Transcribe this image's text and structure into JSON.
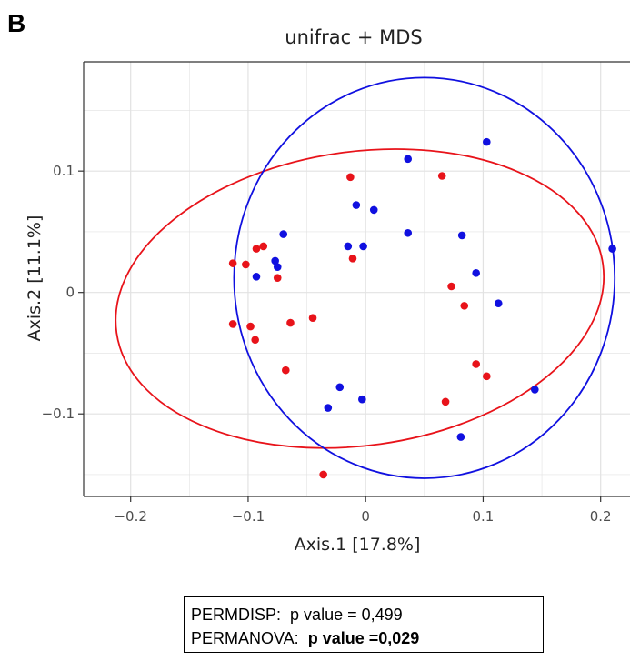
{
  "panel_label": "B",
  "stats": {
    "permdisp_label": "PERMDISP:",
    "permdisp_value": "p value = 0,499",
    "permanova_label": "PERMANOVA:",
    "permanova_value": "p value =0,029"
  },
  "chart_data": {
    "type": "scatter",
    "title": "unifrac + MDS",
    "xlabel": "Axis.1 [17.8%]",
    "ylabel": "Axis.2 [11.1%]",
    "xlim": [
      -0.24,
      0.225
    ],
    "ylim": [
      -0.168,
      0.19
    ],
    "x_ticks": [
      -0.2,
      -0.1,
      0,
      0.1,
      0.2
    ],
    "x_tick_labels": [
      "−0.2",
      "−0.1",
      "0",
      "0.1",
      "0.2"
    ],
    "y_ticks": [
      -0.1,
      0,
      0.1
    ],
    "y_tick_labels": [
      "−0.1",
      "0",
      "0.1"
    ],
    "grid": true,
    "colors": {
      "series_red": "#e8131a",
      "series_blue": "#1010e0",
      "panel_bg": "#ffffff",
      "grid": "#e2e2e2"
    },
    "series": [
      {
        "color": "#e8131a",
        "points": [
          [
            -0.113,
            0.024
          ],
          [
            -0.102,
            0.023
          ],
          [
            -0.093,
            0.036
          ],
          [
            -0.087,
            0.038
          ],
          [
            -0.075,
            0.012
          ],
          [
            -0.113,
            -0.026
          ],
          [
            -0.098,
            -0.028
          ],
          [
            -0.094,
            -0.039
          ],
          [
            -0.064,
            -0.025
          ],
          [
            -0.045,
            -0.021
          ],
          [
            -0.068,
            -0.064
          ],
          [
            -0.013,
            0.095
          ],
          [
            -0.011,
            0.028
          ],
          [
            0.065,
            0.096
          ],
          [
            0.073,
            0.005
          ],
          [
            0.084,
            -0.011
          ],
          [
            0.094,
            -0.059
          ],
          [
            0.103,
            -0.069
          ],
          [
            0.068,
            -0.09
          ],
          [
            -0.036,
            -0.15
          ]
        ],
        "ellipse": {
          "cx": -0.005,
          "cy": -0.005,
          "rx": 0.209,
          "ry": 0.121,
          "angle_deg": -8
        }
      },
      {
        "color": "#1010e0",
        "points": [
          [
            -0.093,
            0.013
          ],
          [
            -0.077,
            0.026
          ],
          [
            -0.075,
            0.021
          ],
          [
            -0.07,
            0.048
          ],
          [
            -0.032,
            -0.095
          ],
          [
            -0.022,
            -0.078
          ],
          [
            -0.015,
            0.038
          ],
          [
            -0.008,
            0.072
          ],
          [
            -0.002,
            0.038
          ],
          [
            -0.003,
            -0.088
          ],
          [
            0.007,
            0.068
          ],
          [
            0.036,
            0.049
          ],
          [
            0.036,
            0.11
          ],
          [
            0.082,
            0.047
          ],
          [
            0.081,
            -0.119
          ],
          [
            0.094,
            0.016
          ],
          [
            0.103,
            0.124
          ],
          [
            0.113,
            -0.009
          ],
          [
            0.144,
            -0.08
          ],
          [
            0.21,
            0.036
          ]
        ],
        "ellipse": {
          "cx": 0.05,
          "cy": 0.012,
          "rx": 0.162,
          "ry": 0.165,
          "angle_deg": 0
        }
      }
    ]
  }
}
